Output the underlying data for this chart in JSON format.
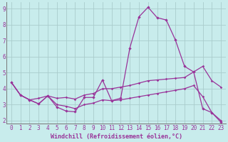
{
  "x": [
    0,
    1,
    2,
    3,
    4,
    5,
    6,
    7,
    8,
    9,
    10,
    11,
    12,
    13,
    14,
    15,
    16,
    17,
    18,
    19,
    20,
    21,
    22,
    23
  ],
  "y_main": [
    4.4,
    3.6,
    3.3,
    3.05,
    3.55,
    2.85,
    2.6,
    2.55,
    3.45,
    3.45,
    4.55,
    3.25,
    3.4,
    6.55,
    8.5,
    9.1,
    8.45,
    8.3,
    7.05,
    5.4,
    5.05,
    2.75,
    2.5,
    1.9
  ],
  "y_line1": [
    4.4,
    3.6,
    3.3,
    3.4,
    3.55,
    3.4,
    3.45,
    3.35,
    3.6,
    3.7,
    4.0,
    4.0,
    4.1,
    4.2,
    4.35,
    4.5,
    4.55,
    4.6,
    4.65,
    4.7,
    5.05,
    5.4,
    4.5,
    4.1
  ],
  "y_line2": [
    4.4,
    3.6,
    3.3,
    3.05,
    3.55,
    3.0,
    2.9,
    2.75,
    3.0,
    3.1,
    3.3,
    3.25,
    3.3,
    3.4,
    3.5,
    3.6,
    3.7,
    3.8,
    3.9,
    4.0,
    4.2,
    3.5,
    2.5,
    2.0
  ],
  "background_color": "#c8ecec",
  "grid_color": "#aacccc",
  "line_color_main": "#993399",
  "line_color_upper": "#993399",
  "line_color_lower": "#993399",
  "xlabel": "Windchill (Refroidissement éolien,°C)",
  "xlim": [
    -0.5,
    23.5
  ],
  "ylim": [
    1.8,
    9.4
  ],
  "yticks": [
    2,
    3,
    4,
    5,
    6,
    7,
    8,
    9
  ],
  "xticks": [
    0,
    1,
    2,
    3,
    4,
    5,
    6,
    7,
    8,
    9,
    10,
    11,
    12,
    13,
    14,
    15,
    16,
    17,
    18,
    19,
    20,
    21,
    22,
    23
  ],
  "tick_fontsize": 5.5,
  "xlabel_fontsize": 6.0,
  "label_color": "#993399",
  "spine_color": "#777777"
}
